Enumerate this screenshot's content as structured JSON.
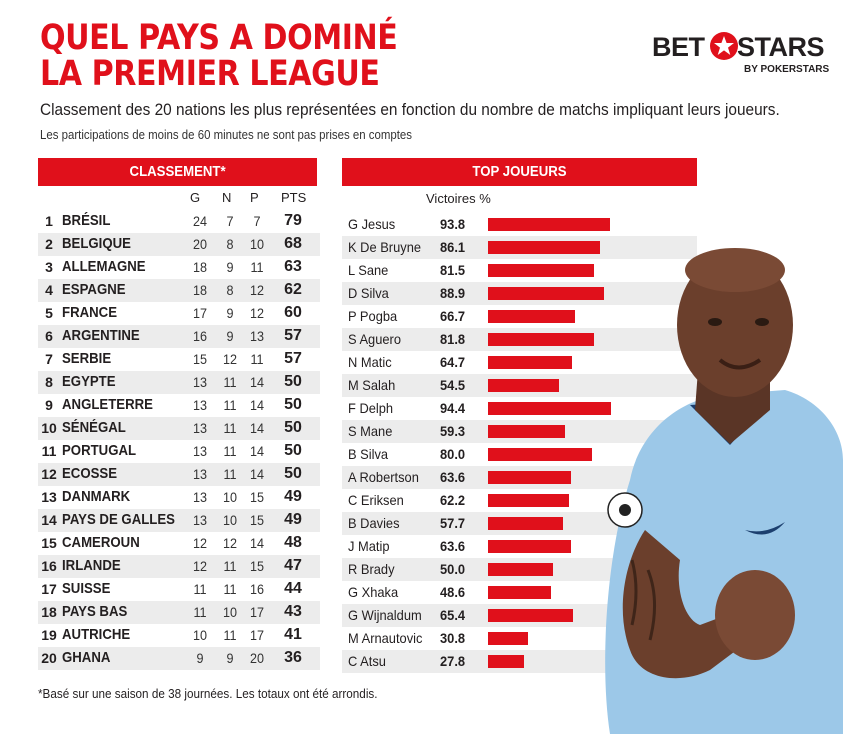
{
  "title_lines": [
    "QUEL PAYS A DOMINÉ",
    "LA PREMIER LEAGUE"
  ],
  "logo": {
    "left": "BET",
    "right": "STARS",
    "tagline": "BY POKERSTARS"
  },
  "subtitle": "Classement des 20 nations les plus représentées en fonction du nombre de matchs impliquant leurs joueurs.",
  "subnote": "Les participations de moins de 60 minutes ne sont pas prises en comptes",
  "left_header": "CLASSEMENT*",
  "right_header": "TOP JOUEURS",
  "columns": {
    "g": "G",
    "n": "N",
    "p": "P",
    "pts": "PTS"
  },
  "victories_label": "Victoires %",
  "footnote": "*Basé sur une saison de 38 journées. Les totaux ont été arrondis.",
  "colors": {
    "accent": "#e0101b",
    "text": "#231f20",
    "row_alt": "#ececec",
    "jersey": "#9cc8e8"
  },
  "chart_data": [
    {
      "type": "table",
      "title": "CLASSEMENT*",
      "columns": [
        "",
        "",
        "G",
        "N",
        "P",
        "PTS"
      ],
      "rows": [
        {
          "rank": "1",
          "country": "BRÉSIL",
          "g": "24",
          "n": "7",
          "p": "7",
          "pts": "79"
        },
        {
          "rank": "2",
          "country": "BELGIQUE",
          "g": "20",
          "n": "8",
          "p": "10",
          "pts": "68"
        },
        {
          "rank": "3",
          "country": "ALLEMAGNE",
          "g": "18",
          "n": "9",
          "p": "11",
          "pts": "63"
        },
        {
          "rank": "4",
          "country": "ESPAGNE",
          "g": "18",
          "n": "8",
          "p": "12",
          "pts": "62"
        },
        {
          "rank": "5",
          "country": "FRANCE",
          "g": "17",
          "n": "9",
          "p": "12",
          "pts": "60"
        },
        {
          "rank": "6",
          "country": "ARGENTINE",
          "g": "16",
          "n": "9",
          "p": "13",
          "pts": "57"
        },
        {
          "rank": "7",
          "country": "SERBIE",
          "g": "15",
          "n": "12",
          "p": "11",
          "pts": "57"
        },
        {
          "rank": "8",
          "country": "EGYPTE",
          "g": "13",
          "n": "11",
          "p": "14",
          "pts": "50"
        },
        {
          "rank": "9",
          "country": "ANGLETERRE",
          "g": "13",
          "n": "11",
          "p": "14",
          "pts": "50"
        },
        {
          "rank": "10",
          "country": "SÉNÉGAL",
          "g": "13",
          "n": "11",
          "p": "14",
          "pts": "50"
        },
        {
          "rank": "11",
          "country": "PORTUGAL",
          "g": "13",
          "n": "11",
          "p": "14",
          "pts": "50"
        },
        {
          "rank": "12",
          "country": "ECOSSE",
          "g": "13",
          "n": "11",
          "p": "14",
          "pts": "50"
        },
        {
          "rank": "13",
          "country": "DANMARK",
          "g": "13",
          "n": "10",
          "p": "15",
          "pts": "49"
        },
        {
          "rank": "14",
          "country": "PAYS DE GALLES",
          "g": "13",
          "n": "10",
          "p": "15",
          "pts": "49"
        },
        {
          "rank": "15",
          "country": "CAMEROUN",
          "g": "12",
          "n": "12",
          "p": "14",
          "pts": "48"
        },
        {
          "rank": "16",
          "country": "IRLANDE",
          "g": "12",
          "n": "11",
          "p": "15",
          "pts": "47"
        },
        {
          "rank": "17",
          "country": "SUISSE",
          "g": "11",
          "n": "11",
          "p": "16",
          "pts": "44"
        },
        {
          "rank": "18",
          "country": "PAYS BAS",
          "g": "11",
          "n": "10",
          "p": "17",
          "pts": "43"
        },
        {
          "rank": "19",
          "country": "AUTRICHE",
          "g": "10",
          "n": "11",
          "p": "17",
          "pts": "41"
        },
        {
          "rank": "20",
          "country": "GHANA",
          "g": "9",
          "n": "9",
          "p": "20",
          "pts": "36"
        }
      ]
    },
    {
      "type": "bar",
      "orientation": "horizontal",
      "title": "TOP JOUEURS",
      "ylabel": "Victoires %",
      "xlim": [
        0,
        100
      ],
      "categories": [
        "G Jesus",
        "K De Bruyne",
        "L Sane",
        "D Silva",
        "P Pogba",
        "S Aguero",
        "N Matic",
        "M Salah",
        "F Delph",
        "S Mane",
        "B Silva",
        "A Robertson",
        "C Eriksen",
        "B Davies",
        "J Matip",
        "R Brady",
        "G Xhaka",
        "G Wijnaldum",
        "M Arnautovic",
        "C Atsu"
      ],
      "values": [
        93.8,
        86.1,
        81.5,
        88.9,
        66.7,
        81.8,
        64.7,
        54.5,
        94.4,
        59.3,
        80.0,
        63.6,
        62.2,
        57.7,
        63.6,
        50.0,
        48.6,
        65.4,
        30.8,
        27.8
      ],
      "labels": [
        "93.8",
        "86.1",
        "81.5",
        "88.9",
        "66.7",
        "81.8",
        "64.7",
        "54.5",
        "94.4",
        "59.3",
        "80.0",
        "63.6",
        "62.2",
        "57.7",
        "63.6",
        "50.0",
        "48.6",
        "65.4",
        "30.8",
        "27.8"
      ]
    }
  ]
}
